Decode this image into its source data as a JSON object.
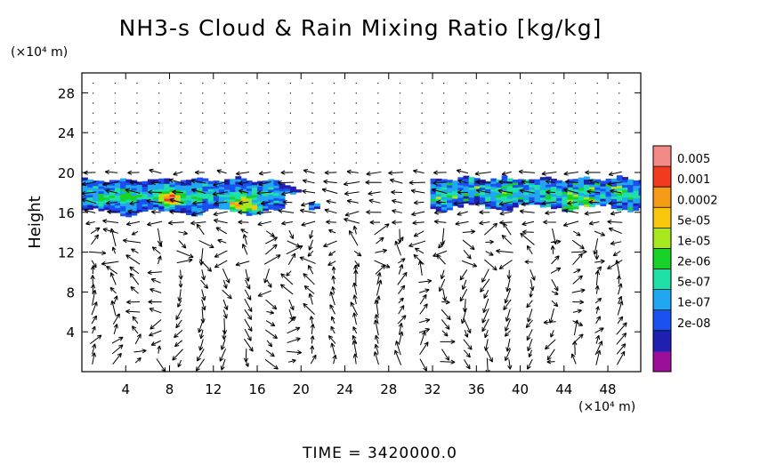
{
  "chart_data": {
    "type": "heatmap",
    "title": "NH3-s Cloud & Rain Mixing Ratio [kg/kg]",
    "ylabel": "Height",
    "y_unit": "(×10⁴ m)",
    "x_unit": "(×10⁴ m)",
    "footer": "TIME  =  3420000.0",
    "xlim": [
      0,
      51
    ],
    "ylim": [
      0,
      30
    ],
    "x_ticks": [
      4,
      8,
      12,
      16,
      20,
      24,
      28,
      32,
      36,
      40,
      44,
      48
    ],
    "y_ticks": [
      4,
      8,
      12,
      16,
      20,
      24,
      28
    ],
    "colorbar": {
      "labels": [
        "0.005",
        "0.001",
        "0.0002",
        "5e-05",
        "1e-05",
        "2e-06",
        "5e-07",
        "1e-07",
        "2e-08"
      ],
      "colors": [
        "#9b0f9b",
        "#2020b0",
        "#1a4ff0",
        "#21a6f2",
        "#1fe0a8",
        "#19d229",
        "#a8e81e",
        "#f8c60a",
        "#f59a14",
        "#f23a1e",
        "#f48a86"
      ]
    },
    "cloud_regions": [
      {
        "x0": 0,
        "x1": 20,
        "y0": 15.4,
        "y1": 19.4
      },
      {
        "x0": 20.2,
        "x1": 21.3,
        "y0": 16.1,
        "y1": 16.9
      },
      {
        "x0": 31.8,
        "x1": 51,
        "y0": 15.9,
        "y1": 19.5
      }
    ],
    "wind_vectors": "dense quiver field over entire domain"
  }
}
